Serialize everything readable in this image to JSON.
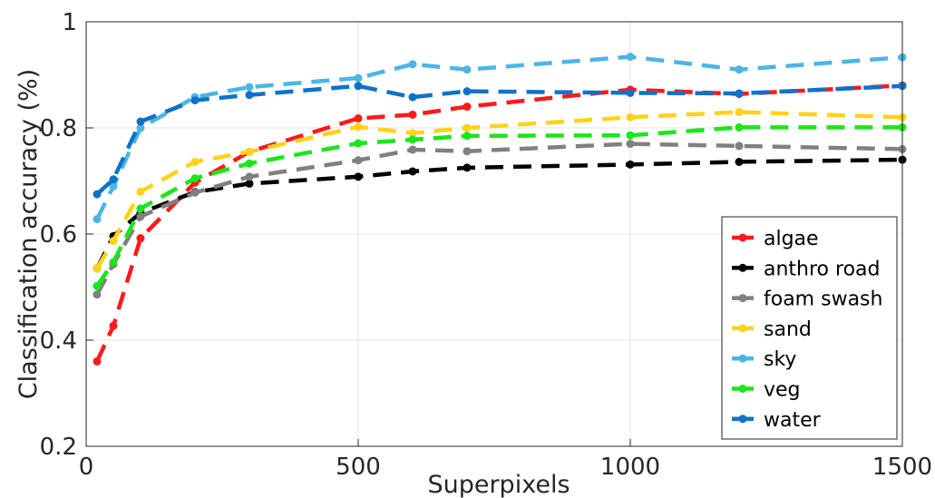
{
  "chart_data": {
    "type": "line",
    "title": "",
    "xlabel": "Superpixels",
    "ylabel": "Classification accuracy (%)",
    "xlim": [
      0,
      1500
    ],
    "ylim": [
      0.2,
      1
    ],
    "xticks": [
      0,
      500,
      1000,
      1500
    ],
    "yticks": [
      0.2,
      0.4,
      0.6,
      0.8,
      1
    ],
    "xtick_labels": [
      "0",
      "500",
      "1000",
      "1500"
    ],
    "ytick_labels": [
      "0.2",
      "0.4",
      "0.6",
      "0.8",
      "1"
    ],
    "grid": true,
    "legend_position": "bottom-right",
    "x": [
      20,
      50,
      100,
      200,
      300,
      500,
      600,
      700,
      1000,
      1200,
      1500
    ],
    "series": [
      {
        "name": "algae",
        "color": "#ff1a1a",
        "values": [
          0.36,
          0.427,
          0.592,
          0.697,
          0.755,
          0.818,
          0.825,
          0.84,
          0.872,
          0.864,
          0.88
        ]
      },
      {
        "name": "anthro road",
        "color": "#000000",
        "values": [
          0.535,
          0.596,
          0.64,
          0.679,
          0.695,
          0.708,
          0.718,
          0.725,
          0.731,
          0.736,
          0.74
        ]
      },
      {
        "name": "foam swash",
        "color": "#808080",
        "values": [
          0.486,
          0.543,
          0.633,
          0.678,
          0.708,
          0.739,
          0.759,
          0.756,
          0.77,
          0.766,
          0.76
        ]
      },
      {
        "name": "sand",
        "color": "#ffd21a",
        "values": [
          0.535,
          0.587,
          0.68,
          0.736,
          0.755,
          0.802,
          0.79,
          0.8,
          0.82,
          0.83,
          0.82
        ]
      },
      {
        "name": "sky",
        "color": "#4bb6e6",
        "values": [
          0.628,
          0.69,
          0.8,
          0.858,
          0.877,
          0.894,
          0.92,
          0.91,
          0.934,
          0.91,
          0.933
        ]
      },
      {
        "name": "veg",
        "color": "#1ae61a",
        "values": [
          0.502,
          0.547,
          0.648,
          0.705,
          0.733,
          0.771,
          0.778,
          0.785,
          0.786,
          0.801,
          0.801
        ]
      },
      {
        "name": "water",
        "color": "#0f72c9",
        "values": [
          0.675,
          0.703,
          0.812,
          0.852,
          0.862,
          0.879,
          0.858,
          0.869,
          0.866,
          0.865,
          0.879
        ]
      }
    ]
  }
}
